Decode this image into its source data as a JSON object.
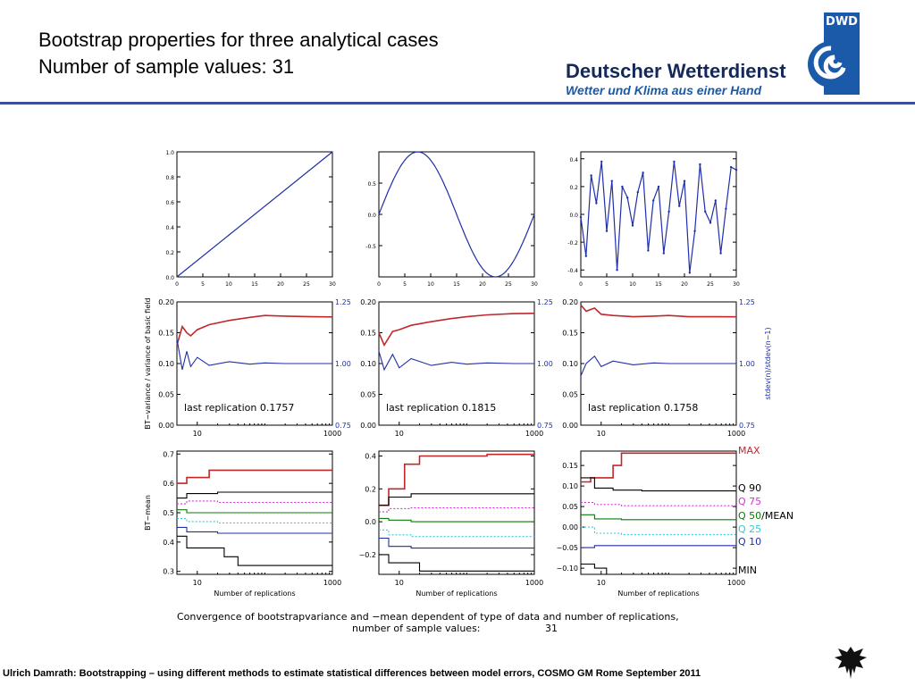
{
  "header": {
    "title_line1": "Bootstrap properties for three analytical cases",
    "title_line2": "Number of sample values: 31"
  },
  "logo": {
    "badge": "DWD",
    "name": "Deutscher Wetterdienst",
    "tagline": "Wetter und Klima aus einer Hand",
    "color": "#1a5aa8"
  },
  "footer": {
    "text": "Ulrich Damrath: Bootstrapping – using different methods to estimate statistical differences between model errors, COSMO GM Rome September  2011"
  },
  "colors": {
    "series_blue": "#1f2fa8",
    "series_red": "#c0282a",
    "black": "#000000",
    "magenta": "#d633d6",
    "cyan": "#33c9d6",
    "green": "#0a7a0a"
  },
  "chart_data": [
    {
      "type": "line",
      "id": "linear",
      "xlim": [
        0,
        30
      ],
      "ylim": [
        0.0,
        1.0
      ],
      "xticks": [
        "0",
        "5",
        "10",
        "15",
        "20",
        "25",
        "30"
      ],
      "yticks": [
        "0.0",
        "0.2",
        "0.4",
        "0.6",
        "0.8",
        "1.0"
      ],
      "x": [
        0,
        30
      ],
      "y": [
        0.0,
        1.0
      ]
    },
    {
      "type": "line",
      "id": "sine",
      "xlim": [
        0,
        30
      ],
      "ylim": [
        -1.0,
        1.0
      ],
      "xticks": [
        "0",
        "5",
        "10",
        "15",
        "20",
        "25",
        "30"
      ],
      "yticks": [
        "-0.5",
        "0.0",
        "0.5"
      ],
      "function": "sin(2*pi*x/30)"
    },
    {
      "type": "line",
      "id": "random",
      "xlim": [
        0,
        30
      ],
      "ylim": [
        -0.45,
        0.45
      ],
      "xticks": [
        "0",
        "5",
        "10",
        "15",
        "20",
        "25",
        "30"
      ],
      "yticks": [
        "-0.4",
        "-0.2",
        "0.0",
        "0.2",
        "0.4"
      ],
      "x": [
        0,
        1,
        2,
        3,
        4,
        5,
        6,
        7,
        8,
        9,
        10,
        11,
        12,
        13,
        14,
        15,
        16,
        17,
        18,
        19,
        20,
        21,
        22,
        23,
        24,
        25,
        26,
        27,
        28,
        29,
        30
      ],
      "y": [
        -0.02,
        -0.3,
        0.28,
        0.08,
        0.38,
        -0.12,
        0.24,
        -0.4,
        0.2,
        0.12,
        -0.08,
        0.16,
        0.3,
        -0.26,
        0.1,
        0.2,
        -0.28,
        0.02,
        0.38,
        0.06,
        0.24,
        -0.42,
        -0.12,
        0.36,
        0.02,
        -0.06,
        0.1,
        -0.28,
        0.04,
        0.34,
        0.32
      ]
    },
    {
      "type": "line",
      "id": "variance-linear",
      "xscale": "log",
      "xlim": [
        5,
        1000
      ],
      "ylim": [
        0.0,
        0.2
      ],
      "yticks": [
        "0.00",
        "0.05",
        "0.10",
        "0.15",
        "0.20"
      ],
      "xticks": [
        "10",
        "1000"
      ],
      "ylabel": "BT−variance / variance of basic field",
      "right_ticks": [
        "0.75",
        "1.00",
        "1.25"
      ],
      "series": [
        {
          "color": "red",
          "x": [
            5,
            6,
            7,
            8,
            10,
            15,
            30,
            60,
            100,
            200,
            500,
            1000
          ],
          "y": [
            0.13,
            0.16,
            0.15,
            0.145,
            0.155,
            0.163,
            0.17,
            0.175,
            0.178,
            0.177,
            0.176,
            0.1757
          ]
        },
        {
          "color": "blue",
          "x": [
            5,
            6,
            7,
            8,
            10,
            15,
            30,
            60,
            100,
            200,
            500,
            1000
          ],
          "y": [
            0.14,
            0.09,
            0.12,
            0.095,
            0.11,
            0.097,
            0.103,
            0.099,
            0.101,
            0.1,
            0.1,
            0.1
          ]
        }
      ],
      "annotation": "last replication 0.1757"
    },
    {
      "type": "line",
      "id": "variance-sine",
      "xscale": "log",
      "xlim": [
        5,
        1000
      ],
      "ylim": [
        0.0,
        0.2
      ],
      "yticks": [
        "0.00",
        "0.05",
        "0.10",
        "0.15",
        "0.20"
      ],
      "xticks": [
        "10",
        "1000"
      ],
      "right_ticks": [
        "0.75",
        "1.00",
        "1.25"
      ],
      "series": [
        {
          "color": "red",
          "x": [
            5,
            6,
            8,
            10,
            15,
            30,
            60,
            100,
            200,
            500,
            1000
          ],
          "y": [
            0.15,
            0.13,
            0.152,
            0.155,
            0.162,
            0.168,
            0.173,
            0.176,
            0.179,
            0.181,
            0.1815
          ]
        },
        {
          "color": "blue",
          "x": [
            5,
            6,
            8,
            10,
            15,
            30,
            60,
            100,
            200,
            500,
            1000
          ],
          "y": [
            0.12,
            0.09,
            0.115,
            0.093,
            0.108,
            0.097,
            0.102,
            0.099,
            0.101,
            0.1,
            0.1
          ]
        }
      ],
      "annotation": "last replication 0.1815"
    },
    {
      "type": "line",
      "id": "variance-random",
      "xscale": "log",
      "xlim": [
        5,
        1000
      ],
      "ylim": [
        0.0,
        0.2
      ],
      "yticks": [
        "0.00",
        "0.05",
        "0.10",
        "0.15",
        "0.20"
      ],
      "xticks": [
        "10",
        "1000"
      ],
      "right_ylabel": "stdev(n)/stdev(n−1)",
      "right_ticks": [
        "0.75",
        "1.00",
        "1.25"
      ],
      "series": [
        {
          "color": "red",
          "x": [
            5,
            6,
            8,
            10,
            15,
            30,
            60,
            100,
            200,
            500,
            1000
          ],
          "y": [
            0.195,
            0.185,
            0.19,
            0.18,
            0.178,
            0.176,
            0.177,
            0.178,
            0.176,
            0.176,
            0.1758
          ]
        },
        {
          "color": "blue",
          "x": [
            5,
            6,
            8,
            10,
            15,
            30,
            60,
            100,
            200,
            500,
            1000
          ],
          "y": [
            0.08,
            0.1,
            0.112,
            0.095,
            0.104,
            0.098,
            0.101,
            0.1,
            0.1,
            0.1,
            0.1
          ]
        }
      ],
      "annotation": "last replication 0.1758"
    },
    {
      "type": "line",
      "id": "mean-linear",
      "xscale": "log",
      "xlim": [
        5,
        1000
      ],
      "ylim": [
        0.29,
        0.71
      ],
      "yticks": [
        "0.3",
        "0.4",
        "0.5",
        "0.6",
        "0.7"
      ],
      "xticks": [
        "10",
        "1000"
      ],
      "xlabel": "Number of replications",
      "ylabel": "BT−mean",
      "series": [
        {
          "name": "MAX",
          "color": "red",
          "style": "solid",
          "x": [
            5,
            7,
            15,
            1000
          ],
          "y": [
            0.6,
            0.62,
            0.645,
            0.645
          ]
        },
        {
          "name": "Q 90",
          "color": "black",
          "style": "solid",
          "x": [
            5,
            7,
            20,
            1000
          ],
          "y": [
            0.55,
            0.565,
            0.57,
            0.57
          ]
        },
        {
          "name": "Q 75",
          "color": "magenta",
          "style": "dotted",
          "x": [
            5,
            7,
            20,
            1000
          ],
          "y": [
            0.53,
            0.54,
            0.535,
            0.535
          ]
        },
        {
          "name": "Q 50/MEAN",
          "color": "green",
          "style": "solid",
          "x": [
            5,
            7,
            20,
            1000
          ],
          "y": [
            0.51,
            0.5,
            0.5,
            0.5
          ]
        },
        {
          "name": "Q 25",
          "color": "cyan",
          "style": "dotted",
          "x": [
            5,
            7,
            20,
            1000
          ],
          "y": [
            0.48,
            0.47,
            0.465,
            0.465
          ]
        },
        {
          "name": "Q 10",
          "color": "blue",
          "style": "solid",
          "x": [
            5,
            7,
            20,
            1000
          ],
          "y": [
            0.45,
            0.435,
            0.43,
            0.43
          ]
        },
        {
          "name": "MIN",
          "color": "black",
          "style": "solid",
          "x": [
            5,
            7,
            25,
            40,
            1000
          ],
          "y": [
            0.42,
            0.38,
            0.35,
            0.32,
            0.32
          ]
        }
      ]
    },
    {
      "type": "line",
      "id": "mean-sine",
      "xscale": "log",
      "xlim": [
        5,
        1000
      ],
      "ylim": [
        -0.32,
        0.43
      ],
      "yticks": [
        "−0.2",
        "0.0",
        "0.2",
        "0.4"
      ],
      "xticks": [
        "10",
        "1000"
      ],
      "xlabel": "Number of replications",
      "series": [
        {
          "name": "MAX",
          "color": "red",
          "style": "solid",
          "x": [
            5,
            7,
            12,
            20,
            200,
            1000
          ],
          "y": [
            0.1,
            0.2,
            0.35,
            0.4,
            0.41,
            0.41
          ]
        },
        {
          "name": "Q 90",
          "color": "black",
          "style": "solid",
          "x": [
            5,
            7,
            15,
            1000
          ],
          "y": [
            0.1,
            0.15,
            0.17,
            0.17
          ]
        },
        {
          "name": "Q 75",
          "color": "magenta",
          "style": "dotted",
          "x": [
            5,
            7,
            15,
            1000
          ],
          "y": [
            0.06,
            0.08,
            0.085,
            0.085
          ]
        },
        {
          "name": "Q 50/MEAN",
          "color": "green",
          "style": "solid",
          "x": [
            5,
            7,
            15,
            1000
          ],
          "y": [
            0.02,
            0.01,
            0.0,
            0.0
          ]
        },
        {
          "name": "Q 25",
          "color": "cyan",
          "style": "dotted",
          "x": [
            5,
            7,
            15,
            1000
          ],
          "y": [
            -0.05,
            -0.08,
            -0.09,
            -0.09
          ]
        },
        {
          "name": "Q 10",
          "color": "blue",
          "style": "solid",
          "x": [
            5,
            7,
            15,
            1000
          ],
          "y": [
            -0.1,
            -0.15,
            -0.16,
            -0.16
          ]
        },
        {
          "name": "MIN",
          "color": "black",
          "style": "solid",
          "x": [
            5,
            7,
            20,
            1000
          ],
          "y": [
            -0.2,
            -0.25,
            -0.3,
            -0.3
          ]
        }
      ]
    },
    {
      "type": "line",
      "id": "mean-random",
      "xscale": "log",
      "xlim": [
        5,
        1000
      ],
      "ylim": [
        -0.115,
        0.185
      ],
      "yticks": [
        "−0.10",
        "−0.05",
        "0.00",
        "0.05",
        "0.10",
        "0.15"
      ],
      "xticks": [
        "10",
        "1000"
      ],
      "xlabel": "Number of replications",
      "series": [
        {
          "name": "MAX",
          "color": "red",
          "style": "solid",
          "x": [
            5,
            7,
            15,
            20,
            1000
          ],
          "y": [
            0.11,
            0.12,
            0.15,
            0.18,
            0.18
          ]
        },
        {
          "name": "Q 90",
          "color": "black",
          "style": "solid",
          "x": [
            5,
            8,
            15,
            40,
            1000
          ],
          "y": [
            0.12,
            0.095,
            0.09,
            0.088,
            0.088
          ]
        },
        {
          "name": "Q 75",
          "color": "magenta",
          "style": "dotted",
          "x": [
            5,
            8,
            20,
            1000
          ],
          "y": [
            0.06,
            0.055,
            0.052,
            0.052
          ]
        },
        {
          "name": "Q 50/MEAN",
          "color": "green",
          "style": "solid",
          "x": [
            5,
            8,
            20,
            1000
          ],
          "y": [
            0.03,
            0.02,
            0.018,
            0.018
          ]
        },
        {
          "name": "Q 25",
          "color": "cyan",
          "style": "dotted",
          "x": [
            5,
            8,
            20,
            1000
          ],
          "y": [
            0.0,
            -0.015,
            -0.018,
            -0.018
          ]
        },
        {
          "name": "Q 10",
          "color": "blue",
          "style": "solid",
          "x": [
            5,
            8,
            20,
            1000
          ],
          "y": [
            -0.05,
            -0.045,
            -0.045,
            -0.045
          ]
        },
        {
          "name": "MIN",
          "color": "black",
          "style": "solid",
          "x": [
            5,
            8,
            12,
            1000
          ],
          "y": [
            -0.09,
            -0.1,
            -0.115,
            -0.115
          ]
        }
      ]
    }
  ],
  "figure_legend": [
    "MAX",
    "Q 90",
    "Q 75",
    "Q 50/MEAN",
    "Q 25",
    "Q 10",
    "MIN"
  ],
  "figure_caption": {
    "line1": "Convergence of bootstrapvariance and −mean dependent of type of data and number of replications,",
    "line2_label": "number of sample values:",
    "line2_value": "31"
  }
}
